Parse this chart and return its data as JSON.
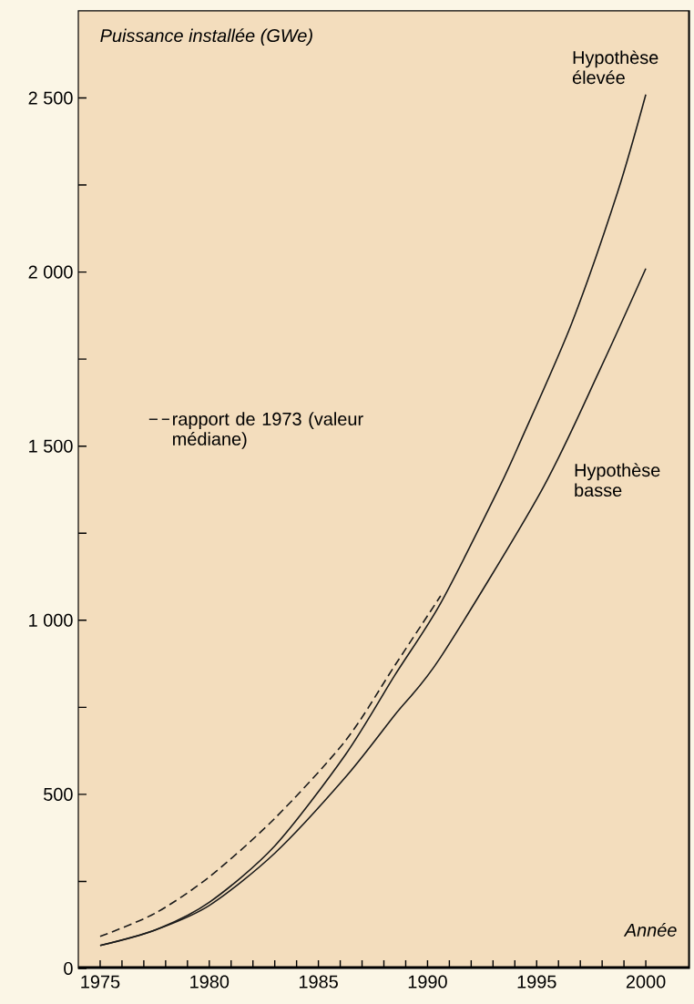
{
  "chart_data": {
    "type": "line",
    "xlabel": "Année",
    "ylabel": "Puissance installée (GWe)",
    "xlim": [
      1974,
      2002
    ],
    "ylim": [
      0,
      2750
    ],
    "xticks": [
      1975,
      {
        "value": 1976,
        "label": null
      },
      {
        "value": 1977,
        "label": null
      },
      {
        "value": 1978,
        "label": null
      },
      {
        "value": 1979,
        "label": null
      },
      1980,
      {
        "value": 1981,
        "label": null
      },
      {
        "value": 1982,
        "label": null
      },
      {
        "value": 1983,
        "label": null
      },
      {
        "value": 1984,
        "label": null
      },
      1985,
      {
        "value": 1986,
        "label": null
      },
      {
        "value": 1987,
        "label": null
      },
      {
        "value": 1988,
        "label": null
      },
      {
        "value": 1989,
        "label": null
      },
      1990,
      {
        "value": 1991,
        "label": null
      },
      {
        "value": 1992,
        "label": null
      },
      {
        "value": 1993,
        "label": null
      },
      {
        "value": 1994,
        "label": null
      },
      1995,
      {
        "value": 1996,
        "label": null
      },
      {
        "value": 1997,
        "label": null
      },
      {
        "value": 1998,
        "label": null
      },
      {
        "value": 1999,
        "label": null
      },
      2000
    ],
    "yticks": [
      0,
      {
        "value": 250,
        "label": null
      },
      500,
      {
        "value": 750,
        "label": null
      },
      {
        "value": 1000,
        "label": "1 000"
      },
      {
        "value": 1250,
        "label": null
      },
      {
        "value": 1500,
        "label": "1 500"
      },
      {
        "value": 1750,
        "label": null
      },
      {
        "value": 2000,
        "label": "2 000"
      },
      {
        "value": 2250,
        "label": null
      },
      {
        "value": 2500,
        "label": "2 500"
      }
    ],
    "legend": "left",
    "series": [
      {
        "name": "Hypothèse élevée",
        "color": "#1a1a1a",
        "line_style": "solid",
        "x": [
          1975,
          1977.5,
          1980,
          1983,
          1986.25,
          1988.5,
          1990.6,
          1993.2,
          1994.3,
          1996.6,
          1998.7,
          2000
        ],
        "values": [
          66,
          110,
          190,
          352,
          615,
          842,
          1049,
          1370,
          1520,
          1852,
          2228,
          2510
        ]
      },
      {
        "name": "Hypothèse basse",
        "color": "#1a1a1a",
        "line_style": "solid",
        "x": [
          1975,
          1977.5,
          1980,
          1983,
          1986.25,
          1988.5,
          1990.6,
          1995.2,
          1997.9,
          2000
        ],
        "values": [
          66,
          110,
          181,
          331,
          550,
          728,
          894,
          1370,
          1720,
          2010
        ]
      },
      {
        "name": "rapport de 1973 (valeur médiane)",
        "color": "#1a1a1a",
        "line_style": "dashed",
        "x": [
          1975,
          1977.5,
          1980,
          1983,
          1986.25,
          1988.5,
          1990.6
        ],
        "values": [
          92,
          158,
          263,
          431,
          655,
          870,
          1070
        ]
      }
    ]
  }
}
